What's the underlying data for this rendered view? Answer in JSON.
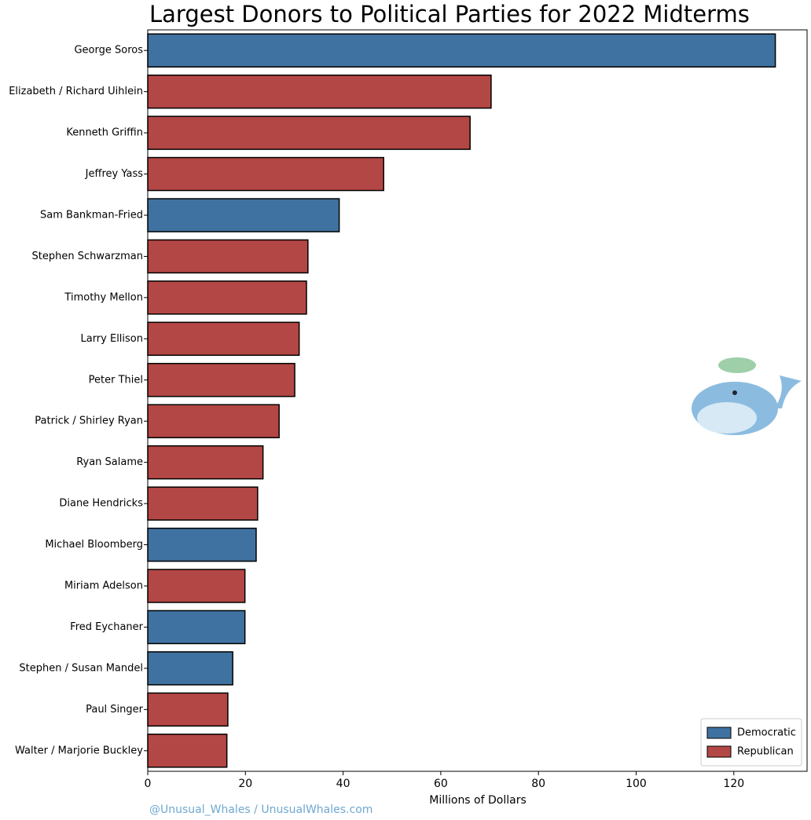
{
  "chart_data": {
    "type": "barh",
    "title": "Largest Donors to Political Parties for 2022 Midterms",
    "x_label": "Millions of Dollars",
    "watermark": "@Unusual_Whales / UnusualWhales.com",
    "categories": [
      "George Soros",
      "Elizabeth / Richard Uihlein",
      "Kenneth Griffin",
      "Jeffrey Yass",
      "Sam Bankman-Fried",
      "Stephen Schwarzman",
      "Timothy Mellon",
      "Larry Ellison",
      "Peter Thiel",
      "Patrick / Shirley Ryan",
      "Ryan Salame",
      "Diane Hendricks",
      "Michael Bloomberg",
      "Miriam Adelson",
      "Fred Eychaner",
      "Stephen / Susan Mandel",
      "Paul Singer",
      "Walter / Marjorie Buckley"
    ],
    "series": [
      {
        "name": "Democratic",
        "color": "#3f72a0",
        "values": [
          128.5,
          null,
          null,
          null,
          39.2,
          null,
          null,
          null,
          null,
          null,
          null,
          null,
          22.2,
          null,
          19.9,
          17.4,
          null,
          null
        ]
      },
      {
        "name": "Republican",
        "color": "#b34745",
        "values": [
          null,
          70.3,
          66.0,
          48.3,
          null,
          32.8,
          32.5,
          31.0,
          30.1,
          26.9,
          23.6,
          22.5,
          null,
          19.9,
          null,
          null,
          16.4,
          16.2
        ]
      }
    ],
    "xlim": [
      0,
      135
    ],
    "xticks": [
      0,
      20,
      40,
      60,
      80,
      100,
      120
    ],
    "grid": false,
    "legend": "lower right"
  }
}
